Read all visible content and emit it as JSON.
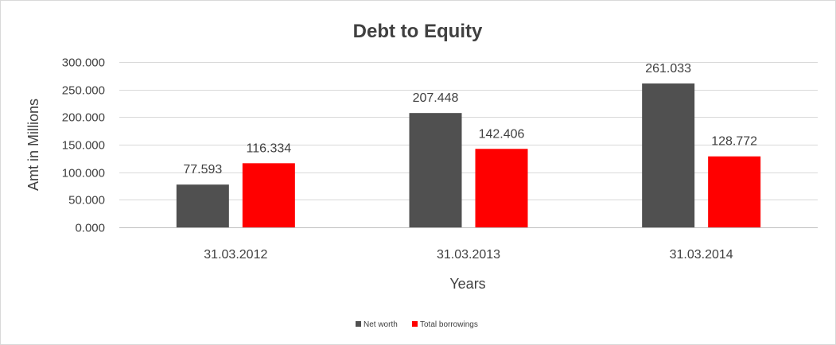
{
  "chart_data": {
    "type": "bar",
    "title": "Debt to Equity",
    "xlabel": "Years",
    "ylabel": "Amt in Millions",
    "categories": [
      "31.03.2012",
      "31.03.2013",
      "31.03.2014"
    ],
    "series": [
      {
        "name": "Net worth",
        "values": [
          77.593,
          207.448,
          261.033
        ],
        "color": "#505050"
      },
      {
        "name": "Total borrowings",
        "values": [
          116.334,
          142.406,
          128.772
        ],
        "color": "#ff0000"
      }
    ],
    "value_labels": [
      [
        "77.593",
        "207.448",
        "261.033"
      ],
      [
        "116.334",
        "142.406",
        "128.772"
      ]
    ],
    "ylim": [
      0,
      300
    ],
    "yticks": [
      0,
      50,
      100,
      150,
      200,
      250,
      300
    ],
    "ytick_labels": [
      "0.000",
      "50.000",
      "100.000",
      "150.000",
      "200.000",
      "250.000",
      "300.000"
    ],
    "grid": true,
    "legend_position": "bottom"
  }
}
